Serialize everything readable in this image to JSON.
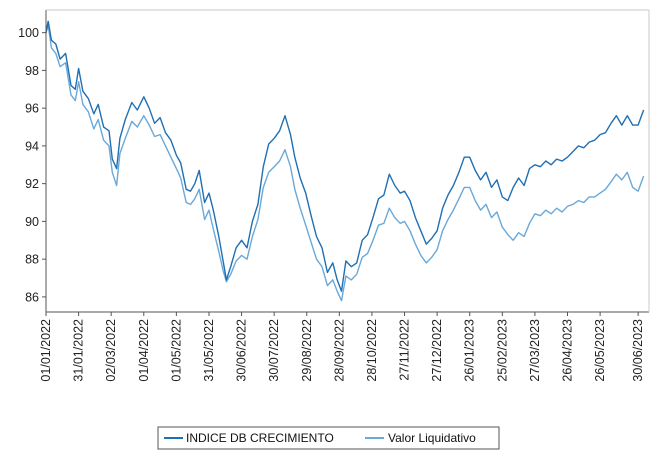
{
  "chart_data": {
    "type": "line",
    "title": "",
    "xlabel": "",
    "ylabel": "",
    "x_range": [
      "2022-01-01",
      "2023-07-10"
    ],
    "ylim": [
      85.2,
      101.2
    ],
    "yticks": [
      86,
      88,
      90,
      92,
      94,
      96,
      98,
      100
    ],
    "xticks": [
      "01/01/2022",
      "31/01/2022",
      "02/03/2022",
      "01/04/2022",
      "01/05/2022",
      "31/05/2022",
      "30/06/2022",
      "30/07/2022",
      "29/08/2022",
      "28/09/2022",
      "28/10/2022",
      "27/11/2022",
      "27/12/2022",
      "26/01/2023",
      "25/02/2023",
      "27/03/2023",
      "26/04/2023",
      "26/05/2023",
      "30/06/2023"
    ],
    "grid": false,
    "legend_position": "bottom",
    "series": [
      {
        "name": "INDICE DB CRECIMIENTO",
        "color": "#1f6fb4",
        "points": [
          [
            "2022-01-01",
            100.0
          ],
          [
            "2022-01-03",
            100.6
          ],
          [
            "2022-01-06",
            99.6
          ],
          [
            "2022-01-10",
            99.4
          ],
          [
            "2022-01-14",
            98.6
          ],
          [
            "2022-01-19",
            98.9
          ],
          [
            "2022-01-24",
            97.2
          ],
          [
            "2022-01-28",
            97.0
          ],
          [
            "2022-01-31",
            98.1
          ],
          [
            "2022-02-04",
            96.9
          ],
          [
            "2022-02-09",
            96.5
          ],
          [
            "2022-02-14",
            95.7
          ],
          [
            "2022-02-18",
            96.2
          ],
          [
            "2022-02-23",
            95.0
          ],
          [
            "2022-02-28",
            94.8
          ],
          [
            "2022-03-03",
            93.3
          ],
          [
            "2022-03-07",
            92.8
          ],
          [
            "2022-03-10",
            94.4
          ],
          [
            "2022-03-15",
            95.4
          ],
          [
            "2022-03-21",
            96.3
          ],
          [
            "2022-03-26",
            95.9
          ],
          [
            "2022-04-01",
            96.6
          ],
          [
            "2022-04-06",
            96.0
          ],
          [
            "2022-04-11",
            95.2
          ],
          [
            "2022-04-16",
            95.5
          ],
          [
            "2022-04-21",
            94.7
          ],
          [
            "2022-04-26",
            94.3
          ],
          [
            "2022-05-01",
            93.5
          ],
          [
            "2022-05-05",
            93.1
          ],
          [
            "2022-05-10",
            91.7
          ],
          [
            "2022-05-14",
            91.6
          ],
          [
            "2022-05-18",
            92.0
          ],
          [
            "2022-05-22",
            92.7
          ],
          [
            "2022-05-27",
            91.0
          ],
          [
            "2022-05-31",
            91.5
          ],
          [
            "2022-06-04",
            90.6
          ],
          [
            "2022-06-09",
            89.2
          ],
          [
            "2022-06-13",
            87.9
          ],
          [
            "2022-06-16",
            86.9
          ],
          [
            "2022-06-20",
            87.6
          ],
          [
            "2022-06-25",
            88.6
          ],
          [
            "2022-06-30",
            89.0
          ],
          [
            "2022-07-05",
            88.6
          ],
          [
            "2022-07-10",
            90.0
          ],
          [
            "2022-07-15",
            90.9
          ],
          [
            "2022-07-20",
            92.9
          ],
          [
            "2022-07-25",
            94.1
          ],
          [
            "2022-07-30",
            94.4
          ],
          [
            "2022-08-04",
            94.8
          ],
          [
            "2022-08-09",
            95.6
          ],
          [
            "2022-08-14",
            94.6
          ],
          [
            "2022-08-18",
            93.4
          ],
          [
            "2022-08-23",
            92.3
          ],
          [
            "2022-08-28",
            91.5
          ],
          [
            "2022-09-02",
            90.3
          ],
          [
            "2022-09-07",
            89.2
          ],
          [
            "2022-09-12",
            88.6
          ],
          [
            "2022-09-17",
            87.3
          ],
          [
            "2022-09-22",
            87.8
          ],
          [
            "2022-09-26",
            86.9
          ],
          [
            "2022-09-30",
            86.3
          ],
          [
            "2022-10-04",
            87.9
          ],
          [
            "2022-10-09",
            87.6
          ],
          [
            "2022-10-14",
            87.8
          ],
          [
            "2022-10-19",
            89.0
          ],
          [
            "2022-10-24",
            89.3
          ],
          [
            "2022-10-29",
            90.2
          ],
          [
            "2022-11-03",
            91.2
          ],
          [
            "2022-11-08",
            91.4
          ],
          [
            "2022-11-13",
            92.5
          ],
          [
            "2022-11-18",
            91.9
          ],
          [
            "2022-11-23",
            91.5
          ],
          [
            "2022-11-27",
            91.6
          ],
          [
            "2022-12-02",
            91.1
          ],
          [
            "2022-12-07",
            90.2
          ],
          [
            "2022-12-12",
            89.5
          ],
          [
            "2022-12-17",
            88.8
          ],
          [
            "2022-12-22",
            89.1
          ],
          [
            "2022-12-27",
            89.5
          ],
          [
            "2023-01-01",
            90.7
          ],
          [
            "2023-01-06",
            91.4
          ],
          [
            "2023-01-11",
            91.9
          ],
          [
            "2023-01-16",
            92.6
          ],
          [
            "2023-01-21",
            93.4
          ],
          [
            "2023-01-26",
            93.4
          ],
          [
            "2023-01-31",
            92.7
          ],
          [
            "2023-02-05",
            92.2
          ],
          [
            "2023-02-10",
            92.6
          ],
          [
            "2023-02-15",
            91.8
          ],
          [
            "2023-02-20",
            92.2
          ],
          [
            "2023-02-25",
            91.3
          ],
          [
            "2023-03-02",
            91.1
          ],
          [
            "2023-03-07",
            91.8
          ],
          [
            "2023-03-12",
            92.3
          ],
          [
            "2023-03-17",
            91.9
          ],
          [
            "2023-03-22",
            92.8
          ],
          [
            "2023-03-27",
            93.0
          ],
          [
            "2023-04-01",
            92.9
          ],
          [
            "2023-04-06",
            93.2
          ],
          [
            "2023-04-11",
            93.0
          ],
          [
            "2023-04-16",
            93.3
          ],
          [
            "2023-04-21",
            93.2
          ],
          [
            "2023-04-26",
            93.4
          ],
          [
            "2023-05-01",
            93.7
          ],
          [
            "2023-05-06",
            94.0
          ],
          [
            "2023-05-11",
            93.9
          ],
          [
            "2023-05-16",
            94.2
          ],
          [
            "2023-05-21",
            94.3
          ],
          [
            "2023-05-26",
            94.6
          ],
          [
            "2023-05-31",
            94.7
          ],
          [
            "2023-06-05",
            95.2
          ],
          [
            "2023-06-10",
            95.6
          ],
          [
            "2023-06-15",
            95.1
          ],
          [
            "2023-06-20",
            95.6
          ],
          [
            "2023-06-25",
            95.1
          ],
          [
            "2023-06-30",
            95.1
          ],
          [
            "2023-07-05",
            95.9
          ]
        ]
      },
      {
        "name": "Valor Liquidativo",
        "color": "#6aa8d8",
        "points": [
          [
            "2022-01-01",
            100.0
          ],
          [
            "2022-01-03",
            100.4
          ],
          [
            "2022-01-06",
            99.2
          ],
          [
            "2022-01-10",
            98.9
          ],
          [
            "2022-01-14",
            98.2
          ],
          [
            "2022-01-19",
            98.4
          ],
          [
            "2022-01-24",
            96.7
          ],
          [
            "2022-01-28",
            96.4
          ],
          [
            "2022-01-31",
            97.4
          ],
          [
            "2022-02-04",
            96.2
          ],
          [
            "2022-02-09",
            95.8
          ],
          [
            "2022-02-14",
            94.9
          ],
          [
            "2022-02-18",
            95.4
          ],
          [
            "2022-02-23",
            94.3
          ],
          [
            "2022-02-28",
            94.0
          ],
          [
            "2022-03-03",
            92.6
          ],
          [
            "2022-03-07",
            91.9
          ],
          [
            "2022-03-10",
            93.6
          ],
          [
            "2022-03-15",
            94.4
          ],
          [
            "2022-03-21",
            95.3
          ],
          [
            "2022-03-26",
            95.0
          ],
          [
            "2022-04-01",
            95.6
          ],
          [
            "2022-04-06",
            95.1
          ],
          [
            "2022-04-11",
            94.5
          ],
          [
            "2022-04-16",
            94.6
          ],
          [
            "2022-04-21",
            94.0
          ],
          [
            "2022-04-26",
            93.4
          ],
          [
            "2022-05-01",
            92.8
          ],
          [
            "2022-05-05",
            92.3
          ],
          [
            "2022-05-10",
            91.0
          ],
          [
            "2022-05-14",
            90.9
          ],
          [
            "2022-05-18",
            91.2
          ],
          [
            "2022-05-22",
            91.7
          ],
          [
            "2022-05-27",
            90.1
          ],
          [
            "2022-05-31",
            90.6
          ],
          [
            "2022-06-04",
            89.6
          ],
          [
            "2022-06-09",
            88.4
          ],
          [
            "2022-06-13",
            87.4
          ],
          [
            "2022-06-16",
            86.8
          ],
          [
            "2022-06-20",
            87.2
          ],
          [
            "2022-06-25",
            87.9
          ],
          [
            "2022-06-30",
            88.2
          ],
          [
            "2022-07-05",
            88.0
          ],
          [
            "2022-07-10",
            89.2
          ],
          [
            "2022-07-15",
            90.1
          ],
          [
            "2022-07-20",
            91.8
          ],
          [
            "2022-07-25",
            92.6
          ],
          [
            "2022-07-30",
            92.9
          ],
          [
            "2022-08-04",
            93.2
          ],
          [
            "2022-08-09",
            93.8
          ],
          [
            "2022-08-14",
            92.9
          ],
          [
            "2022-08-18",
            91.7
          ],
          [
            "2022-08-23",
            90.7
          ],
          [
            "2022-08-28",
            89.8
          ],
          [
            "2022-09-02",
            88.9
          ],
          [
            "2022-09-07",
            88.0
          ],
          [
            "2022-09-12",
            87.6
          ],
          [
            "2022-09-17",
            86.6
          ],
          [
            "2022-09-22",
            86.9
          ],
          [
            "2022-09-26",
            86.3
          ],
          [
            "2022-09-30",
            85.8
          ],
          [
            "2022-10-04",
            87.1
          ],
          [
            "2022-10-09",
            86.9
          ],
          [
            "2022-10-14",
            87.2
          ],
          [
            "2022-10-19",
            88.1
          ],
          [
            "2022-10-24",
            88.3
          ],
          [
            "2022-10-29",
            89.0
          ],
          [
            "2022-11-03",
            89.8
          ],
          [
            "2022-11-08",
            89.9
          ],
          [
            "2022-11-13",
            90.7
          ],
          [
            "2022-11-18",
            90.2
          ],
          [
            "2022-11-23",
            89.9
          ],
          [
            "2022-11-27",
            90.0
          ],
          [
            "2022-12-02",
            89.5
          ],
          [
            "2022-12-07",
            88.8
          ],
          [
            "2022-12-12",
            88.2
          ],
          [
            "2022-12-17",
            87.8
          ],
          [
            "2022-12-22",
            88.1
          ],
          [
            "2022-12-27",
            88.5
          ],
          [
            "2023-01-01",
            89.5
          ],
          [
            "2023-01-06",
            90.1
          ],
          [
            "2023-01-11",
            90.6
          ],
          [
            "2023-01-16",
            91.2
          ],
          [
            "2023-01-21",
            91.8
          ],
          [
            "2023-01-26",
            91.8
          ],
          [
            "2023-01-31",
            91.1
          ],
          [
            "2023-02-05",
            90.6
          ],
          [
            "2023-02-10",
            90.9
          ],
          [
            "2023-02-15",
            90.2
          ],
          [
            "2023-02-20",
            90.5
          ],
          [
            "2023-02-25",
            89.7
          ],
          [
            "2023-03-02",
            89.3
          ],
          [
            "2023-03-07",
            89.0
          ],
          [
            "2023-03-12",
            89.4
          ],
          [
            "2023-03-17",
            89.2
          ],
          [
            "2023-03-22",
            89.9
          ],
          [
            "2023-03-27",
            90.4
          ],
          [
            "2023-04-01",
            90.3
          ],
          [
            "2023-04-06",
            90.6
          ],
          [
            "2023-04-11",
            90.4
          ],
          [
            "2023-04-16",
            90.7
          ],
          [
            "2023-04-21",
            90.5
          ],
          [
            "2023-04-26",
            90.8
          ],
          [
            "2023-05-01",
            90.9
          ],
          [
            "2023-05-06",
            91.1
          ],
          [
            "2023-05-11",
            91.0
          ],
          [
            "2023-05-16",
            91.3
          ],
          [
            "2023-05-21",
            91.3
          ],
          [
            "2023-05-26",
            91.5
          ],
          [
            "2023-05-31",
            91.7
          ],
          [
            "2023-06-05",
            92.1
          ],
          [
            "2023-06-10",
            92.5
          ],
          [
            "2023-06-15",
            92.2
          ],
          [
            "2023-06-20",
            92.6
          ],
          [
            "2023-06-25",
            91.8
          ],
          [
            "2023-06-30",
            91.6
          ],
          [
            "2023-07-05",
            92.4
          ]
        ]
      }
    ]
  }
}
